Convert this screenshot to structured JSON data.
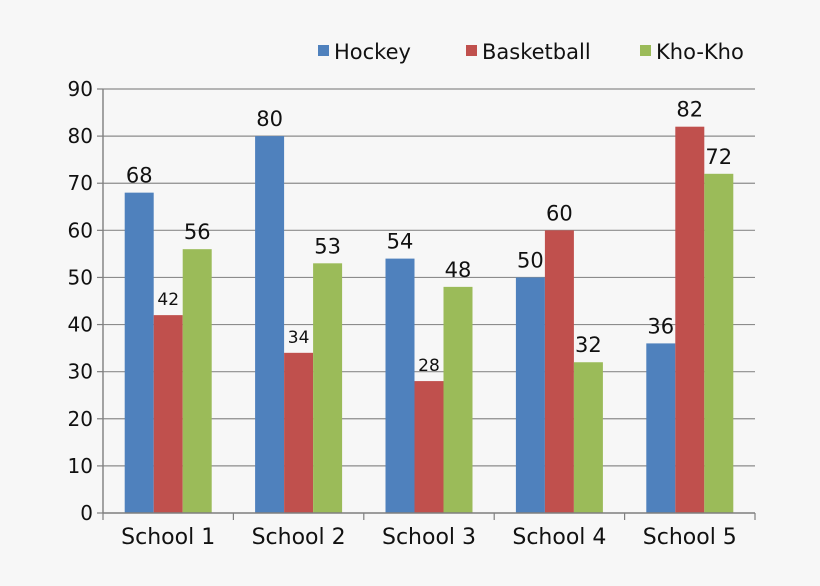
{
  "chart_data": {
    "type": "bar",
    "title": "",
    "xlabel": "",
    "ylabel": "",
    "categories": [
      "School 1",
      "School 2",
      "School 3",
      "School 4",
      "School 5"
    ],
    "series": [
      {
        "name": "Hockey",
        "values": [
          68,
          80,
          54,
          50,
          36
        ],
        "color": "#4f81bd"
      },
      {
        "name": "Basketball",
        "values": [
          42,
          34,
          28,
          60,
          82
        ],
        "color": "#c0504d"
      },
      {
        "name": "Kho-Kho",
        "values": [
          56,
          53,
          48,
          32,
          72
        ],
        "color": "#9bbb59"
      }
    ],
    "ylim": [
      0,
      90
    ],
    "yticks": [
      0,
      10,
      20,
      30,
      40,
      50,
      60,
      70,
      80,
      90
    ],
    "grid": true,
    "legend_position": "top-right",
    "data_labels": true
  }
}
